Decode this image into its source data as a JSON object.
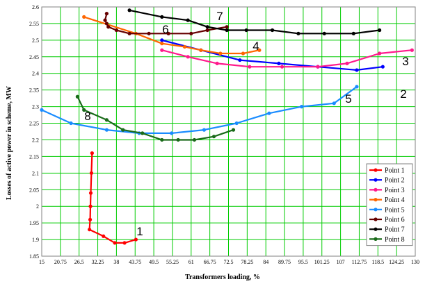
{
  "chart_data": {
    "type": "line",
    "xlabel": "Transformers loading, %",
    "ylabel": "Losses of active power in scheme, MW",
    "xlim": [
      15,
      130
    ],
    "ylim": [
      1.85,
      2.6
    ],
    "x_ticks": [
      "15",
      "20.75",
      "26.5",
      "32.25",
      "38",
      "43.75",
      "49.5",
      "55.25",
      "61",
      "66.75",
      "72.5",
      "78.25",
      "84",
      "89.75",
      "95.5",
      "101.25",
      "107",
      "112.75",
      "118.5",
      "124.25",
      "130"
    ],
    "y_ticks": [
      "1.85",
      "1.9",
      "1.95",
      "2",
      "2.05",
      "2.1",
      "2.15",
      "2.2",
      "2.25",
      "2.3",
      "2.35",
      "2.4",
      "2.45",
      "2.5",
      "2.55",
      "2.6"
    ],
    "grid": true,
    "grid_color": "#00cc00",
    "legend_position": "bottom-right",
    "series": [
      {
        "name": "Point 1",
        "label": "1",
        "color": "#ff0000",
        "points": [
          [
            30.5,
            2.16
          ],
          [
            30.3,
            2.1
          ],
          [
            30.1,
            2.04
          ],
          [
            30.0,
            2.0
          ],
          [
            29.9,
            1.96
          ],
          [
            29.7,
            1.93
          ],
          [
            34,
            1.91
          ],
          [
            37.5,
            1.89
          ],
          [
            40.5,
            1.89
          ],
          [
            44,
            1.9
          ]
        ]
      },
      {
        "name": "Point 2",
        "label": "2",
        "color": "#0000ff",
        "points": [
          [
            52,
            2.5
          ],
          [
            64,
            2.47
          ],
          [
            76,
            2.44
          ],
          [
            88,
            2.43
          ],
          [
            100,
            2.42
          ],
          [
            112,
            2.41
          ],
          [
            120,
            2.42
          ]
        ]
      },
      {
        "name": "Point 3",
        "label": "3",
        "color": "#ff1a8c",
        "points": [
          [
            52,
            2.47
          ],
          [
            60,
            2.45
          ],
          [
            69,
            2.43
          ],
          [
            79,
            2.42
          ],
          [
            89,
            2.42
          ],
          [
            100,
            2.42
          ],
          [
            109,
            2.43
          ],
          [
            119,
            2.46
          ],
          [
            129,
            2.47
          ]
        ]
      },
      {
        "name": "Point 4",
        "label": "4",
        "color": "#ff6600",
        "points": [
          [
            28,
            2.57
          ],
          [
            44,
            2.52
          ],
          [
            52,
            2.49
          ],
          [
            59,
            2.48
          ],
          [
            64,
            2.47
          ],
          [
            70,
            2.46
          ],
          [
            77,
            2.46
          ],
          [
            82,
            2.47
          ]
        ]
      },
      {
        "name": "Point 5",
        "label": "5",
        "color": "#1a8cff",
        "points": [
          [
            15,
            2.29
          ],
          [
            24,
            2.25
          ],
          [
            35,
            2.23
          ],
          [
            45,
            2.22
          ],
          [
            55,
            2.22
          ],
          [
            65,
            2.23
          ],
          [
            75,
            2.25
          ],
          [
            85,
            2.28
          ],
          [
            95,
            2.3
          ],
          [
            105,
            2.31
          ],
          [
            112,
            2.36
          ]
        ]
      },
      {
        "name": "Point 6",
        "label": "6",
        "color": "#660000",
        "points": [
          [
            35,
            2.58
          ],
          [
            34.5,
            2.56
          ],
          [
            35,
            2.55
          ],
          [
            35.5,
            2.54
          ],
          [
            38,
            2.53
          ],
          [
            42,
            2.52
          ],
          [
            48,
            2.52
          ],
          [
            54,
            2.52
          ],
          [
            61,
            2.52
          ],
          [
            66,
            2.53
          ],
          [
            72,
            2.54
          ]
        ]
      },
      {
        "name": "Point 7",
        "label": "7",
        "color": "#000000",
        "points": [
          [
            42,
            2.59
          ],
          [
            52,
            2.57
          ],
          [
            60,
            2.56
          ],
          [
            66,
            2.54
          ],
          [
            72,
            2.53
          ],
          [
            78,
            2.53
          ],
          [
            86,
            2.53
          ],
          [
            94,
            2.52
          ],
          [
            102,
            2.52
          ],
          [
            111,
            2.52
          ],
          [
            119,
            2.53
          ]
        ]
      },
      {
        "name": "Point 8",
        "label": "8",
        "color": "#1a6b1a",
        "points": [
          [
            26,
            2.33
          ],
          [
            28,
            2.29
          ],
          [
            35,
            2.26
          ],
          [
            40,
            2.23
          ],
          [
            46,
            2.22
          ],
          [
            52,
            2.2
          ],
          [
            57,
            2.2
          ],
          [
            62,
            2.2
          ],
          [
            68,
            2.21
          ],
          [
            74,
            2.23
          ]
        ]
      }
    ]
  }
}
